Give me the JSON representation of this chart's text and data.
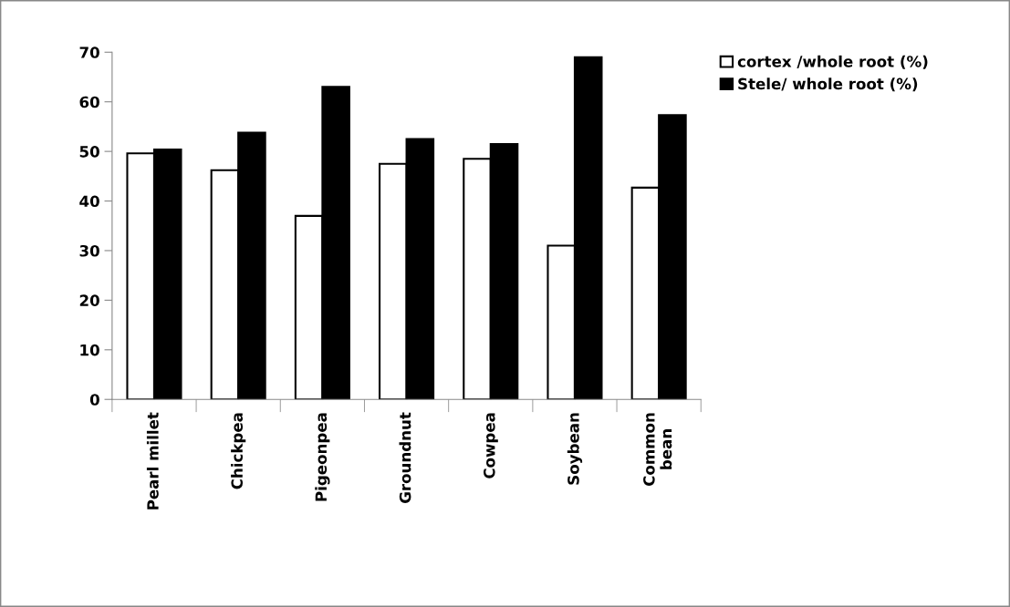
{
  "chart_data": {
    "type": "bar",
    "categories": [
      "Pearl millet",
      "Chickpea",
      "Pigeonpea",
      "Groundnut",
      "Cowpea",
      "Soybean",
      "Common\nbean"
    ],
    "series": [
      {
        "name": "cortex /whole root (%)",
        "color": "#ffffff",
        "values": [
          49.6,
          46.2,
          37.0,
          47.5,
          48.5,
          31.0,
          42.7
        ]
      },
      {
        "name": "Stele/ whole root (%)",
        "color": "#000000",
        "values": [
          50.4,
          53.8,
          63.0,
          52.5,
          51.5,
          69.0,
          57.3
        ]
      }
    ],
    "ylim": [
      0,
      70
    ],
    "yticks": [
      0,
      10,
      20,
      30,
      40,
      50,
      60,
      70
    ],
    "grid": false,
    "legend": "top right"
  }
}
